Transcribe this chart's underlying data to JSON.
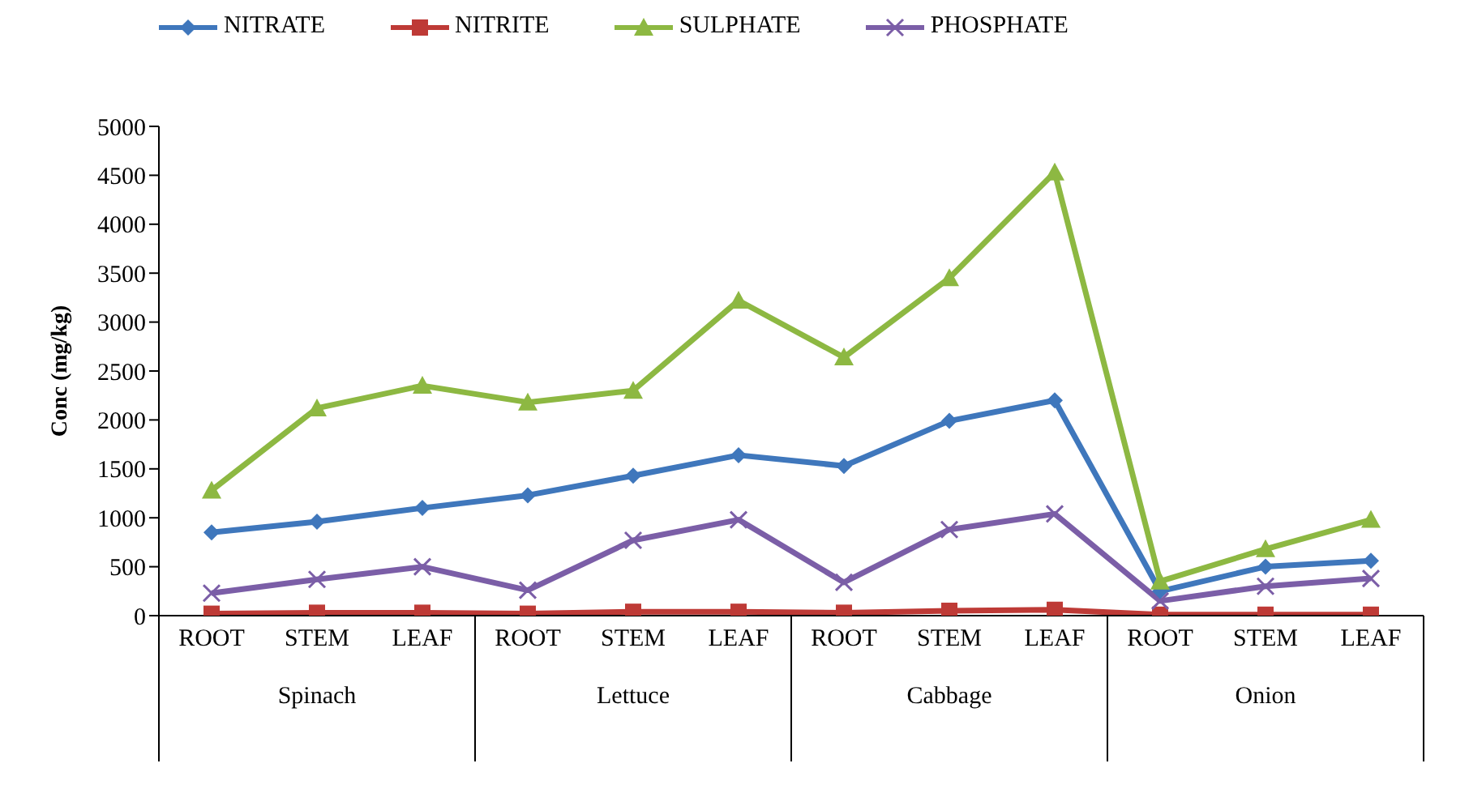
{
  "chart_data": {
    "type": "line",
    "ylabel": "Conc (mg/kg)",
    "categories": [
      "ROOT",
      "STEM",
      "LEAF",
      "ROOT",
      "STEM",
      "LEAF",
      "ROOT",
      "STEM",
      "LEAF",
      "ROOT",
      "STEM",
      "LEAF"
    ],
    "annotations": [
      "Spinach",
      "Lettuce",
      "Cabbage",
      "Onion"
    ],
    "series": [
      {
        "name": "NITRATE",
        "color": "#3f77bc",
        "marker": "diamond",
        "values": [
          850,
          960,
          1100,
          1230,
          1430,
          1640,
          1530,
          1990,
          2200,
          250,
          500,
          560
        ]
      },
      {
        "name": "NITRITE",
        "color": "#be3a36",
        "marker": "square",
        "values": [
          20,
          30,
          30,
          20,
          40,
          40,
          30,
          50,
          60,
          10,
          10,
          10
        ]
      },
      {
        "name": "SULPHATE",
        "color": "#8db842",
        "marker": "triangle",
        "values": [
          1280,
          2120,
          2350,
          2180,
          2300,
          3220,
          2640,
          3450,
          4530,
          350,
          680,
          980
        ]
      },
      {
        "name": "PHOSPHATE",
        "color": "#7b5ea7",
        "marker": "cross",
        "values": [
          230,
          370,
          500,
          260,
          770,
          980,
          340,
          880,
          1040,
          150,
          300,
          380
        ]
      }
    ],
    "ylim": [
      0,
      5000
    ],
    "yticks": [
      0,
      500,
      1000,
      1500,
      2000,
      2500,
      3000,
      3500,
      4000,
      4500,
      5000
    ],
    "grid": false,
    "legend": "top"
  }
}
